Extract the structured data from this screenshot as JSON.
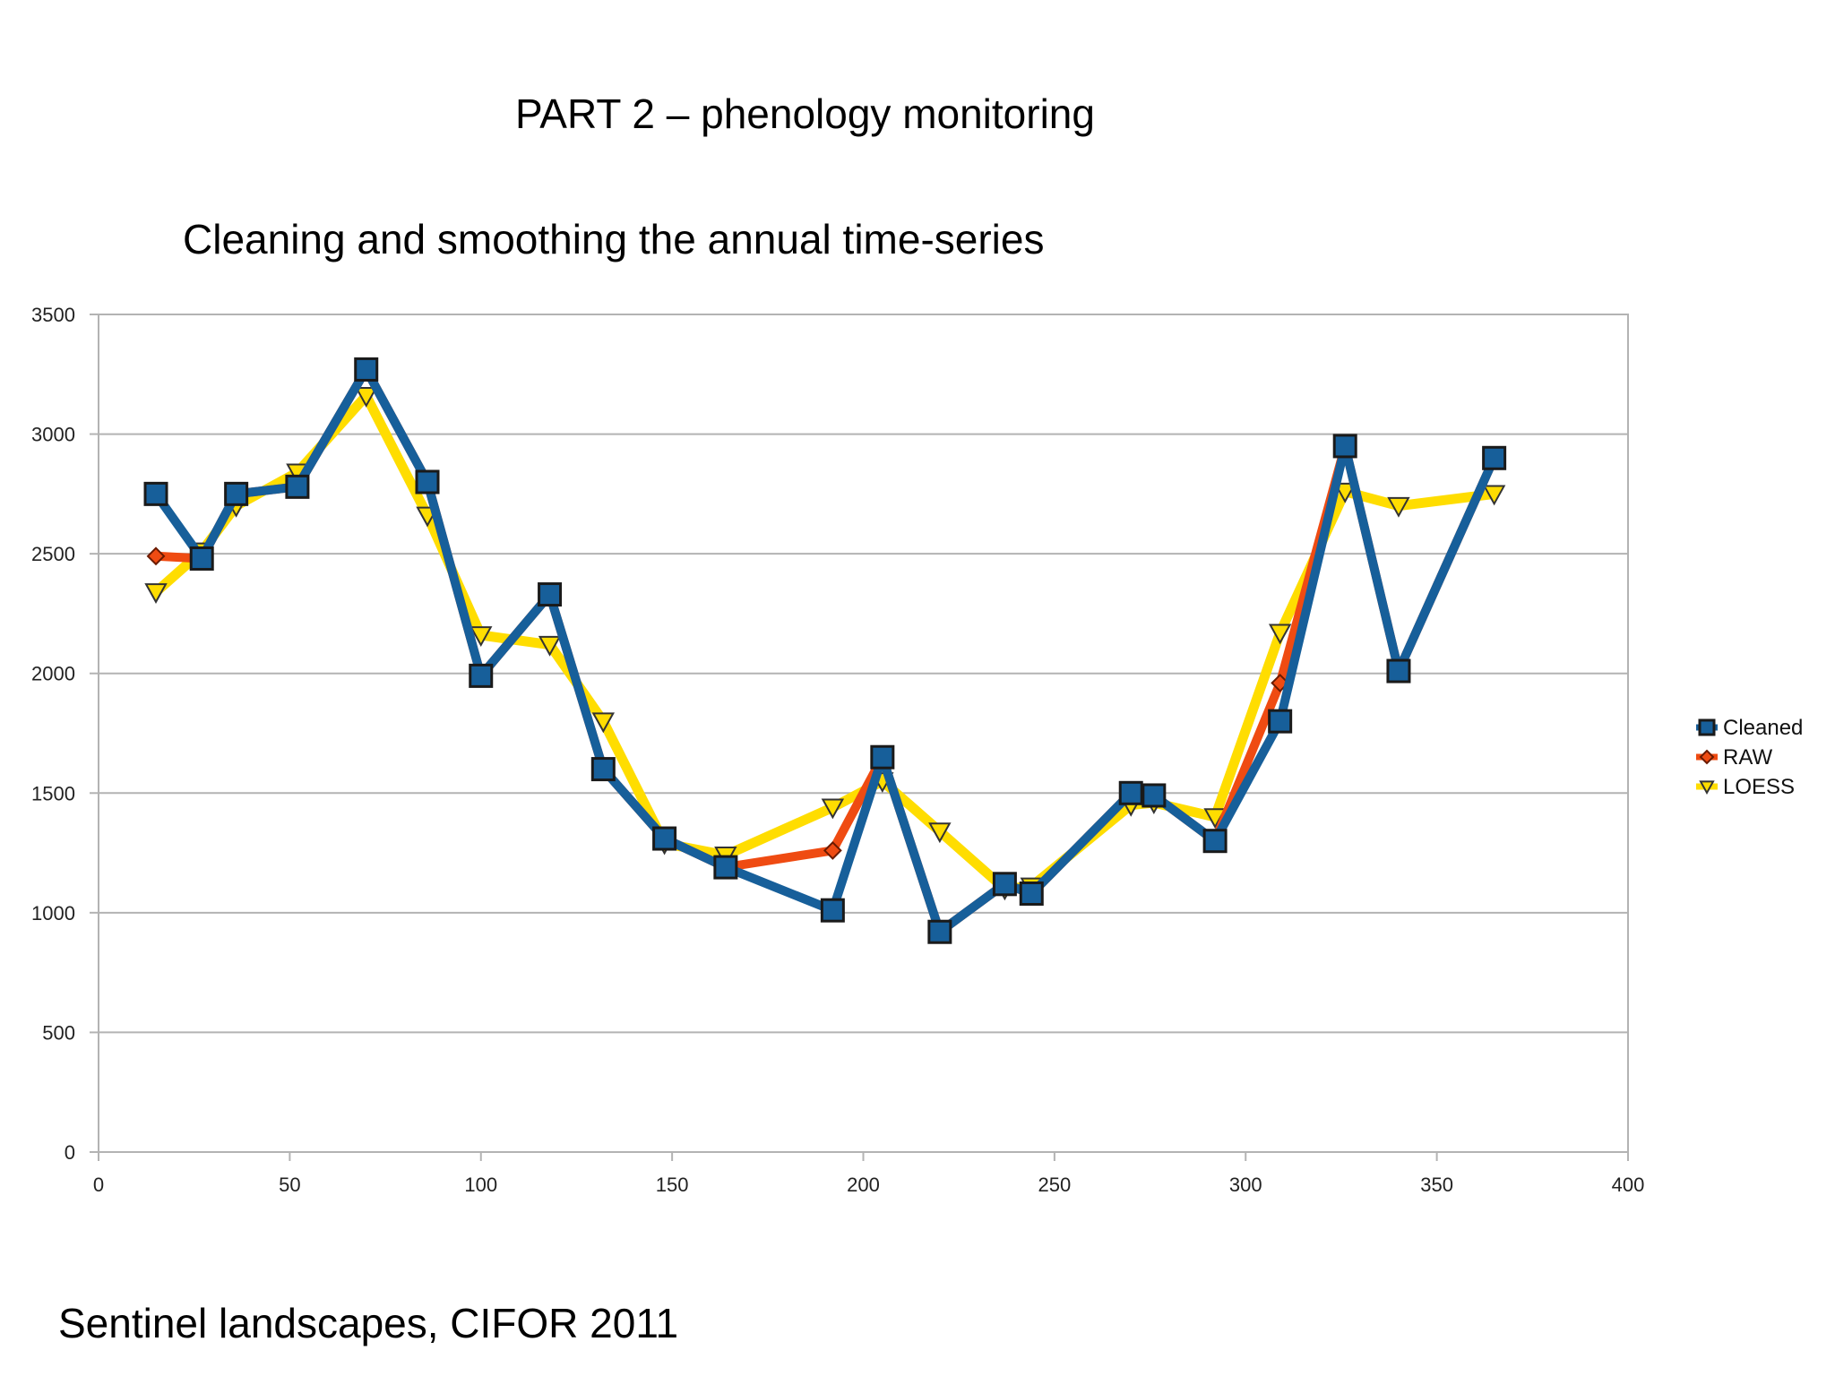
{
  "slide": {
    "title": "PART 2 – phenology monitoring",
    "subtitle": "Cleaning and smoothing the annual time-series",
    "footer": "Sentinel landscapes, CIFOR 2011"
  },
  "chart_data": {
    "type": "line",
    "title": "",
    "xlabel": "",
    "ylabel": "",
    "xlim": [
      0,
      400
    ],
    "ylim": [
      0,
      3500
    ],
    "xticks": [
      0,
      50,
      100,
      150,
      200,
      250,
      300,
      350,
      400
    ],
    "yticks": [
      0,
      500,
      1000,
      1500,
      2000,
      2500,
      3000,
      3500
    ],
    "grid": true,
    "legend_position": "right",
    "series": [
      {
        "name": "LOESS",
        "color": "#ffdd00",
        "marker": "triangle-down",
        "x": [
          15,
          27,
          36,
          52,
          70,
          86,
          100,
          118,
          132,
          148,
          164,
          192,
          205,
          220,
          237,
          244,
          270,
          276,
          292,
          309,
          326,
          340,
          365
        ],
        "y": [
          2340,
          2510,
          2700,
          2840,
          3160,
          2660,
          2160,
          2120,
          1800,
          1290,
          1240,
          1440,
          1550,
          1340,
          1100,
          1110,
          1450,
          1460,
          1400,
          2170,
          2760,
          2700,
          2750
        ]
      },
      {
        "name": "RAW",
        "color": "#ef4b12",
        "marker": "diamond",
        "x": [
          15,
          27,
          36,
          52,
          70,
          86,
          100,
          118,
          132,
          148,
          164,
          192,
          205,
          220,
          237,
          244,
          270,
          276,
          292,
          309,
          326,
          340,
          365
        ],
        "y": [
          2490,
          2480,
          2750,
          2780,
          3270,
          2800,
          1990,
          2330,
          1600,
          1310,
          1190,
          1260,
          1650,
          920,
          1120,
          1080,
          1500,
          1490,
          1300,
          1960,
          2950,
          2010,
          2900
        ]
      },
      {
        "name": "Cleaned",
        "color": "#175f9a",
        "marker": "square",
        "x": [
          15,
          27,
          36,
          52,
          70,
          86,
          100,
          118,
          132,
          148,
          164,
          192,
          205,
          220,
          237,
          244,
          270,
          276,
          292,
          309,
          326,
          340,
          365
        ],
        "y": [
          2750,
          2480,
          2750,
          2780,
          3270,
          2800,
          1990,
          2330,
          1600,
          1310,
          1190,
          1010,
          1650,
          920,
          1120,
          1080,
          1500,
          1490,
          1300,
          1800,
          2950,
          2010,
          2900
        ]
      }
    ],
    "legend_order": [
      "Cleaned",
      "RAW",
      "LOESS"
    ]
  }
}
